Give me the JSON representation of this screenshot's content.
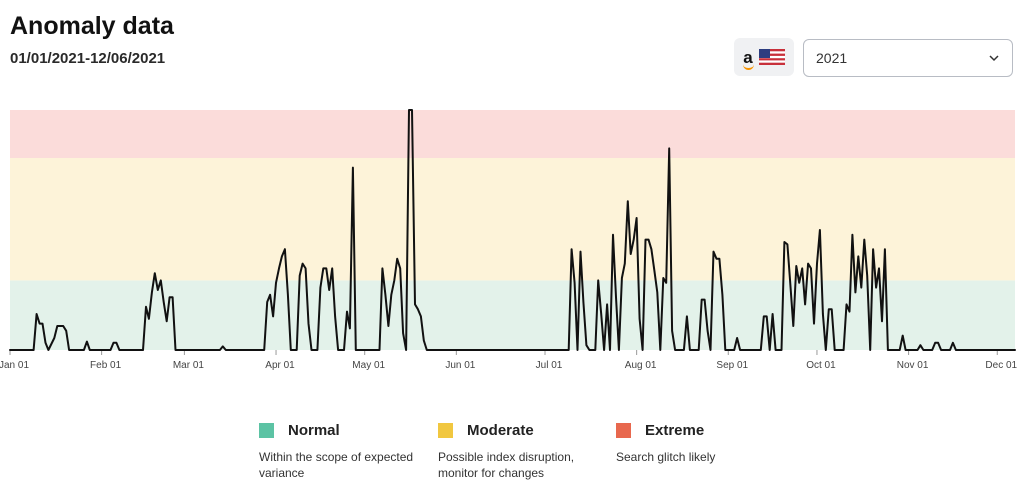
{
  "header": {
    "title": "Anomaly data",
    "date_range": "01/01/2021-12/06/2021",
    "marketplace_logo_text": "a",
    "flag_icon": "us-flag-icon",
    "year_select": {
      "value": "2021"
    }
  },
  "legend": [
    {
      "label": "Normal",
      "description": "Within the scope of expected variance",
      "color": "#5cc3a4"
    },
    {
      "label": "Moderate",
      "description": "Possible index disruption, monitor for changes",
      "color": "#f1c740"
    },
    {
      "label": "Extreme",
      "description": "Search glitch likely",
      "color": "#e8684e"
    }
  ],
  "chart_data": {
    "type": "line",
    "title": "",
    "xlabel": "",
    "ylabel": "",
    "x_range": [
      "2021-01-01",
      "2021-12-07"
    ],
    "ylim": [
      0,
      10
    ],
    "y_tick_labels": false,
    "bands": [
      {
        "name": "Normal",
        "from": 0,
        "to": 2.9,
        "color": "#e3f2ea"
      },
      {
        "name": "Moderate",
        "from": 2.9,
        "to": 8.0,
        "color": "#fdf3d9"
      },
      {
        "name": "Extreme",
        "from": 8.0,
        "to": 10,
        "color": "#fbdcda"
      }
    ],
    "x_ticks": [
      {
        "date": "2021-01-01",
        "label": "Jan 01"
      },
      {
        "date": "2021-02-01",
        "label": "Feb 01"
      },
      {
        "date": "2021-03-01",
        "label": "Mar 01"
      },
      {
        "date": "2021-04-01",
        "label": "Apr 01"
      },
      {
        "date": "2021-05-01",
        "label": "May 01"
      },
      {
        "date": "2021-06-01",
        "label": "Jun 01"
      },
      {
        "date": "2021-07-01",
        "label": "Jul 01"
      },
      {
        "date": "2021-08-01",
        "label": "Aug 01"
      },
      {
        "date": "2021-09-01",
        "label": "Sep 01"
      },
      {
        "date": "2021-10-01",
        "label": "Oct 01"
      },
      {
        "date": "2021-11-01",
        "label": "Nov 01"
      },
      {
        "date": "2021-12-01",
        "label": "Dec 01"
      }
    ],
    "series": [
      {
        "color": "#111111",
        "points": [
          [
            "2021-01-01",
            0
          ],
          [
            "2021-01-09",
            0
          ],
          [
            "2021-01-10",
            1.5
          ],
          [
            "2021-01-11",
            1.1
          ],
          [
            "2021-01-12",
            1.1
          ],
          [
            "2021-01-13",
            0.3
          ],
          [
            "2021-01-14",
            0
          ],
          [
            "2021-01-16",
            0.5
          ],
          [
            "2021-01-17",
            1.0
          ],
          [
            "2021-01-19",
            1.0
          ],
          [
            "2021-01-20",
            0.8
          ],
          [
            "2021-01-21",
            0
          ],
          [
            "2021-01-26",
            0
          ],
          [
            "2021-01-27",
            0.35
          ],
          [
            "2021-01-28",
            0
          ],
          [
            "2021-02-04",
            0
          ],
          [
            "2021-02-05",
            0.3
          ],
          [
            "2021-02-06",
            0.3
          ],
          [
            "2021-02-07",
            0
          ],
          [
            "2021-02-15",
            0
          ],
          [
            "2021-02-16",
            1.8
          ],
          [
            "2021-02-17",
            1.3
          ],
          [
            "2021-02-18",
            2.4
          ],
          [
            "2021-02-19",
            3.2
          ],
          [
            "2021-02-20",
            2.5
          ],
          [
            "2021-02-21",
            2.9
          ],
          [
            "2021-02-22",
            2.0
          ],
          [
            "2021-02-23",
            1.2
          ],
          [
            "2021-02-24",
            2.2
          ],
          [
            "2021-02-25",
            2.2
          ],
          [
            "2021-02-26",
            0
          ],
          [
            "2021-03-13",
            0
          ],
          [
            "2021-03-14",
            0.15
          ],
          [
            "2021-03-15",
            0
          ],
          [
            "2021-03-28",
            0
          ],
          [
            "2021-03-29",
            2.0
          ],
          [
            "2021-03-30",
            2.3
          ],
          [
            "2021-03-31",
            1.4
          ],
          [
            "2021-04-01",
            2.8
          ],
          [
            "2021-04-02",
            3.4
          ],
          [
            "2021-04-03",
            3.9
          ],
          [
            "2021-04-04",
            4.2
          ],
          [
            "2021-04-05",
            2.3
          ],
          [
            "2021-04-06",
            0
          ],
          [
            "2021-04-08",
            0
          ],
          [
            "2021-04-09",
            3.1
          ],
          [
            "2021-04-10",
            3.6
          ],
          [
            "2021-04-11",
            3.4
          ],
          [
            "2021-04-12",
            1.1
          ],
          [
            "2021-04-13",
            0
          ],
          [
            "2021-04-15",
            0
          ],
          [
            "2021-04-16",
            2.6
          ],
          [
            "2021-04-17",
            3.4
          ],
          [
            "2021-04-18",
            3.4
          ],
          [
            "2021-04-19",
            2.5
          ],
          [
            "2021-04-20",
            3.4
          ],
          [
            "2021-04-21",
            1.4
          ],
          [
            "2021-04-22",
            0
          ],
          [
            "2021-04-24",
            0
          ],
          [
            "2021-04-25",
            1.6
          ],
          [
            "2021-04-26",
            0.9
          ],
          [
            "2021-04-27",
            7.6
          ],
          [
            "2021-04-28",
            0
          ],
          [
            "2021-05-06",
            0
          ],
          [
            "2021-05-07",
            3.4
          ],
          [
            "2021-05-08",
            2.3
          ],
          [
            "2021-05-09",
            1.0
          ],
          [
            "2021-05-10",
            2.3
          ],
          [
            "2021-05-11",
            2.9
          ],
          [
            "2021-05-12",
            3.8
          ],
          [
            "2021-05-13",
            3.4
          ],
          [
            "2021-05-14",
            0.7
          ],
          [
            "2021-05-15",
            0
          ],
          [
            "2021-05-16",
            10
          ],
          [
            "2021-05-17",
            10
          ],
          [
            "2021-05-18",
            1.9
          ],
          [
            "2021-05-19",
            1.7
          ],
          [
            "2021-05-20",
            1.4
          ],
          [
            "2021-05-21",
            0.4
          ],
          [
            "2021-05-22",
            0
          ],
          [
            "2021-07-09",
            0
          ],
          [
            "2021-07-10",
            4.2
          ],
          [
            "2021-07-11",
            2.8
          ],
          [
            "2021-07-12",
            0
          ],
          [
            "2021-07-13",
            4.1
          ],
          [
            "2021-07-14",
            2.0
          ],
          [
            "2021-07-15",
            0.2
          ],
          [
            "2021-07-16",
            0
          ],
          [
            "2021-07-18",
            0
          ],
          [
            "2021-07-19",
            2.9
          ],
          [
            "2021-07-20",
            1.5
          ],
          [
            "2021-07-21",
            0
          ],
          [
            "2021-07-22",
            1.9
          ],
          [
            "2021-07-23",
            0
          ],
          [
            "2021-07-24",
            4.8
          ],
          [
            "2021-07-25",
            2.2
          ],
          [
            "2021-07-26",
            0
          ],
          [
            "2021-07-27",
            3.0
          ],
          [
            "2021-07-28",
            3.6
          ],
          [
            "2021-07-29",
            6.2
          ],
          [
            "2021-07-30",
            4.0
          ],
          [
            "2021-07-31",
            4.6
          ],
          [
            "2021-08-01",
            5.5
          ],
          [
            "2021-08-02",
            1.3
          ],
          [
            "2021-08-03",
            0
          ],
          [
            "2021-08-04",
            4.6
          ],
          [
            "2021-08-05",
            4.6
          ],
          [
            "2021-08-06",
            4.2
          ],
          [
            "2021-08-07",
            3.3
          ],
          [
            "2021-08-08",
            2.4
          ],
          [
            "2021-08-09",
            0
          ],
          [
            "2021-08-10",
            3.0
          ],
          [
            "2021-08-11",
            2.8
          ],
          [
            "2021-08-12",
            8.4
          ],
          [
            "2021-08-13",
            0.8
          ],
          [
            "2021-08-14",
            0
          ],
          [
            "2021-08-17",
            0
          ],
          [
            "2021-08-18",
            1.4
          ],
          [
            "2021-08-19",
            0
          ],
          [
            "2021-08-21",
            0
          ],
          [
            "2021-08-22",
            0
          ],
          [
            "2021-08-23",
            2.1
          ],
          [
            "2021-08-24",
            2.1
          ],
          [
            "2021-08-25",
            0.8
          ],
          [
            "2021-08-26",
            0
          ],
          [
            "2021-08-27",
            4.1
          ],
          [
            "2021-08-28",
            3.8
          ],
          [
            "2021-08-29",
            3.8
          ],
          [
            "2021-08-30",
            2.3
          ],
          [
            "2021-08-31",
            0
          ],
          [
            "2021-09-03",
            0
          ],
          [
            "2021-09-04",
            0.5
          ],
          [
            "2021-09-05",
            0
          ],
          [
            "2021-09-12",
            0
          ],
          [
            "2021-09-13",
            1.4
          ],
          [
            "2021-09-14",
            1.4
          ],
          [
            "2021-09-15",
            0
          ],
          [
            "2021-09-16",
            1.5
          ],
          [
            "2021-09-17",
            0
          ],
          [
            "2021-09-19",
            0
          ],
          [
            "2021-09-20",
            4.5
          ],
          [
            "2021-09-21",
            4.4
          ],
          [
            "2021-09-22",
            2.7
          ],
          [
            "2021-09-23",
            1.0
          ],
          [
            "2021-09-24",
            3.5
          ],
          [
            "2021-09-25",
            2.8
          ],
          [
            "2021-09-26",
            3.4
          ],
          [
            "2021-09-27",
            1.9
          ],
          [
            "2021-09-28",
            3.6
          ],
          [
            "2021-09-29",
            3.4
          ],
          [
            "2021-09-30",
            1.1
          ],
          [
            "2021-10-01",
            3.6
          ],
          [
            "2021-10-02",
            5.0
          ],
          [
            "2021-10-03",
            1.5
          ],
          [
            "2021-10-04",
            0
          ],
          [
            "2021-10-05",
            1.7
          ],
          [
            "2021-10-06",
            1.7
          ],
          [
            "2021-10-07",
            0
          ],
          [
            "2021-10-10",
            0
          ],
          [
            "2021-10-11",
            1.9
          ],
          [
            "2021-10-12",
            1.6
          ],
          [
            "2021-10-13",
            4.8
          ],
          [
            "2021-10-14",
            2.4
          ],
          [
            "2021-10-15",
            3.9
          ],
          [
            "2021-10-16",
            2.6
          ],
          [
            "2021-10-17",
            4.6
          ],
          [
            "2021-10-18",
            3.1
          ],
          [
            "2021-10-19",
            0
          ],
          [
            "2021-10-20",
            4.2
          ],
          [
            "2021-10-21",
            2.6
          ],
          [
            "2021-10-22",
            3.4
          ],
          [
            "2021-10-23",
            1.2
          ],
          [
            "2021-10-24",
            4.2
          ],
          [
            "2021-10-25",
            0
          ],
          [
            "2021-10-29",
            0
          ],
          [
            "2021-10-30",
            0.6
          ],
          [
            "2021-10-31",
            0
          ],
          [
            "2021-11-04",
            0
          ],
          [
            "2021-11-05",
            0.2
          ],
          [
            "2021-11-06",
            0
          ],
          [
            "2021-11-09",
            0
          ],
          [
            "2021-11-10",
            0.3
          ],
          [
            "2021-11-11",
            0.3
          ],
          [
            "2021-11-12",
            0
          ],
          [
            "2021-11-15",
            0
          ],
          [
            "2021-11-16",
            0.3
          ],
          [
            "2021-11-17",
            0
          ],
          [
            "2021-12-07",
            0
          ]
        ]
      }
    ]
  }
}
